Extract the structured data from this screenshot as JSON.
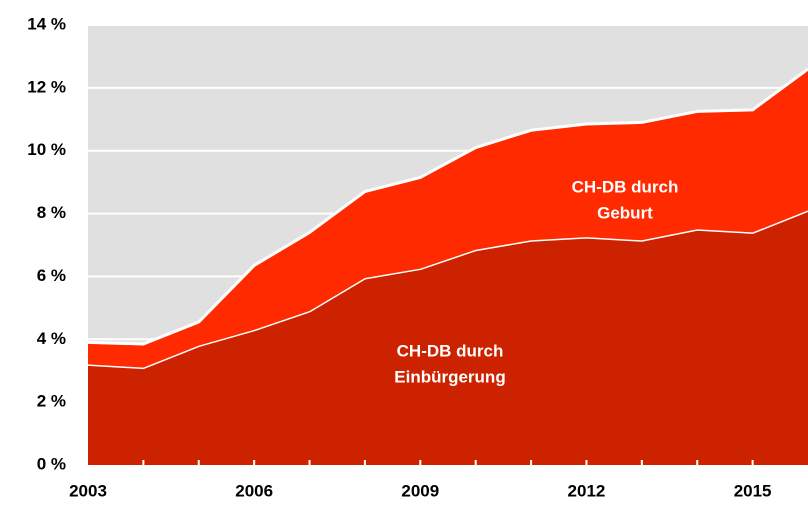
{
  "chart_data": {
    "type": "stacked_area",
    "x": [
      2003,
      2004,
      2005,
      2006,
      2007,
      2008,
      2009,
      2010,
      2011,
      2012,
      2013,
      2014,
      2015,
      2016
    ],
    "series": [
      {
        "color": "#cc2200",
        "values": [
          3.2,
          3.1,
          3.8,
          4.3,
          4.9,
          5.95,
          6.25,
          6.85,
          7.15,
          7.25,
          7.15,
          7.5,
          7.4,
          8.1
        ]
      },
      {
        "color": "#ff2a00",
        "values": [
          0.7,
          0.75,
          0.75,
          2.05,
          2.5,
          2.75,
          2.9,
          3.25,
          3.5,
          3.6,
          3.75,
          3.75,
          3.9,
          4.5
        ]
      }
    ],
    "annotations": [
      [
        "CH-DB durch",
        "Einbürgerung"
      ],
      [
        "CH-DB durch",
        "Geburt"
      ]
    ],
    "xlim": [
      2003,
      2016
    ],
    "xticks": [
      2003,
      2006,
      2009,
      2012,
      2015
    ],
    "ylim": [
      0,
      14
    ],
    "yticks": [
      {
        "value": 0,
        "label": "0 %"
      },
      {
        "value": 2,
        "label": "2 %"
      },
      {
        "value": 4,
        "label": "4 %"
      },
      {
        "value": 6,
        "label": "6 %"
      },
      {
        "value": 8,
        "label": "8 %"
      },
      {
        "value": 10,
        "label": "10 %"
      },
      {
        "value": 12,
        "label": "12 %"
      },
      {
        "value": 14,
        "label": "14 %"
      }
    ],
    "grid": true,
    "background": "#e0e0e0"
  }
}
